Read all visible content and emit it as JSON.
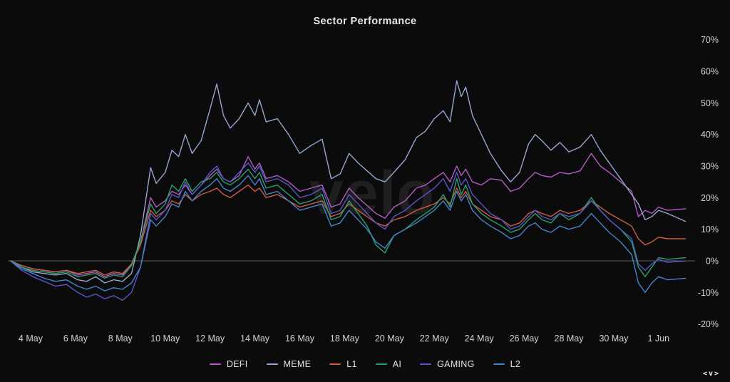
{
  "title": "Sector Performance",
  "watermark": "velo",
  "logo_text": "<v>",
  "colors": {
    "background": "#0b0b0b",
    "title_text": "#e8e8e8",
    "axis_text": "#d2d2d2",
    "zero_line": "#606060",
    "watermark": "#1f1f1f",
    "legend_text": "#e4e4e4"
  },
  "chart_data": {
    "type": "line",
    "title": "Sector Performance",
    "x_unit": "days since 3 May",
    "ylim": [
      -20,
      70
    ],
    "grid": false,
    "zero_line": true,
    "legend_position": "bottom",
    "y_ticks": [
      {
        "label": "70%",
        "value": 70
      },
      {
        "label": "60%",
        "value": 60
      },
      {
        "label": "50%",
        "value": 50
      },
      {
        "label": "40%",
        "value": 40
      },
      {
        "label": "30%",
        "value": 30
      },
      {
        "label": "20%",
        "value": 20
      },
      {
        "label": "10%",
        "value": 10
      },
      {
        "label": "0%",
        "value": 0
      },
      {
        "label": "-10%",
        "value": -10
      },
      {
        "label": "-20%",
        "value": -20
      }
    ],
    "x_ticks": [
      {
        "label": "4 May",
        "day": 1
      },
      {
        "label": "6 May",
        "day": 3
      },
      {
        "label": "8 May",
        "day": 5
      },
      {
        "label": "10 May",
        "day": 7
      },
      {
        "label": "12 May",
        "day": 9
      },
      {
        "label": "14 May",
        "day": 11
      },
      {
        "label": "16 May",
        "day": 13
      },
      {
        "label": "18 May",
        "day": 15
      },
      {
        "label": "20 May",
        "day": 17
      },
      {
        "label": "22 May",
        "day": 19
      },
      {
        "label": "24 May",
        "day": 21
      },
      {
        "label": "26 May",
        "day": 23
      },
      {
        "label": "28 May",
        "day": 25
      },
      {
        "label": "30 May",
        "day": 27
      },
      {
        "label": "1 Jun",
        "day": 29
      }
    ],
    "x": [
      0.1,
      0.6,
      1.1,
      1.6,
      2.1,
      2.6,
      3.1,
      3.5,
      3.9,
      4.3,
      4.7,
      5.1,
      5.5,
      5.9,
      6.35,
      6.6,
      7.0,
      7.3,
      7.6,
      7.9,
      8.2,
      8.6,
      9.0,
      9.3,
      9.6,
      9.9,
      10.3,
      10.7,
      11.0,
      11.2,
      11.5,
      12.0,
      12.5,
      13.0,
      13.5,
      14.0,
      14.4,
      14.8,
      15.2,
      15.6,
      16.0,
      16.4,
      16.8,
      17.2,
      17.7,
      18.2,
      18.6,
      19.0,
      19.4,
      19.7,
      20.0,
      20.2,
      20.4,
      20.7,
      21.1,
      21.5,
      22.0,
      22.4,
      22.8,
      23.2,
      23.5,
      23.8,
      24.2,
      24.6,
      25.0,
      25.5,
      26.0,
      26.4,
      26.8,
      27.3,
      27.8,
      28.1,
      28.4,
      28.7,
      29.0,
      29.4,
      30.2
    ],
    "series": [
      {
        "name": "DEFI",
        "color": "#b35bc4",
        "values": [
          0,
          -1.5,
          -2.5,
          -3,
          -3.5,
          -3,
          -4.5,
          -4,
          -3.5,
          -5,
          -4,
          -4.5,
          -1,
          6,
          20,
          17,
          19,
          22,
          21,
          24,
          21,
          24,
          27,
          29,
          26,
          25,
          27,
          33,
          29,
          31,
          26,
          27,
          25,
          22,
          23,
          24,
          17,
          18,
          23,
          20,
          17.5,
          15,
          13.5,
          17,
          19,
          23,
          24,
          26,
          28,
          25,
          30,
          27,
          29,
          25,
          24,
          26,
          25.5,
          22,
          23,
          26,
          28,
          27,
          26.5,
          28,
          27.5,
          28.5,
          34,
          30,
          28,
          25,
          22,
          14,
          16,
          15,
          17,
          16,
          16.5
        ]
      },
      {
        "name": "MEME",
        "color": "#95a7cf",
        "values": [
          0,
          -2,
          -3.5,
          -4,
          -4.5,
          -4,
          -6,
          -6.5,
          -5,
          -7,
          -6,
          -6.5,
          -4,
          8,
          29.5,
          24.5,
          28,
          35,
          33,
          40,
          34,
          38,
          48,
          56,
          46,
          42,
          45,
          50,
          46,
          51,
          44,
          45,
          40,
          34,
          36.5,
          38.5,
          26,
          27.5,
          34,
          31,
          28.5,
          26,
          25,
          28,
          32,
          39,
          41,
          45,
          47.5,
          44,
          57,
          52,
          55,
          46,
          40,
          34,
          28.5,
          25,
          28,
          37,
          40,
          38,
          35,
          37.5,
          34.5,
          36,
          40,
          35,
          31,
          26,
          21,
          18,
          13,
          14,
          16,
          15,
          12.5
        ]
      },
      {
        "name": "L1",
        "color": "#cf5b43",
        "values": [
          0,
          -1.5,
          -2.5,
          -3,
          -3.5,
          -3,
          -4,
          -3.5,
          -3,
          -4.5,
          -3.5,
          -4,
          -1,
          5,
          16,
          14,
          16,
          19,
          18,
          21,
          19,
          21,
          22,
          23,
          21,
          20,
          22,
          24,
          22,
          23,
          20,
          21,
          19,
          17,
          18,
          19,
          14,
          15,
          18,
          16,
          14,
          12,
          11,
          13,
          14,
          16,
          17,
          18,
          20,
          18,
          23,
          20,
          22,
          18,
          16,
          14,
          13,
          11,
          12,
          15,
          16,
          15,
          14,
          16,
          15,
          16,
          19,
          17,
          15,
          13,
          11,
          7,
          5,
          6,
          7.5,
          7,
          7
        ]
      },
      {
        "name": "AI",
        "color": "#27a26c",
        "values": [
          0,
          -2,
          -3,
          -3.5,
          -4,
          -3.5,
          -5,
          -4.5,
          -4,
          -5.5,
          -4.5,
          -5,
          -1.5,
          6,
          18,
          15,
          18,
          24,
          22,
          26,
          22,
          25,
          26,
          28,
          25,
          24,
          26,
          29,
          26,
          28,
          23,
          24,
          21,
          18,
          19,
          21,
          13,
          14,
          19,
          15,
          11,
          5,
          2.5,
          8,
          10,
          13,
          15,
          17,
          21,
          17,
          26,
          21,
          24,
          18,
          15,
          13,
          11,
          9,
          10,
          13,
          15,
          13,
          12,
          15,
          13,
          15,
          20,
          16,
          13,
          10,
          6,
          -2,
          -5,
          -2,
          1,
          0.5,
          1
        ]
      },
      {
        "name": "GAMING",
        "color": "#5a55c9",
        "values": [
          0,
          -3,
          -5,
          -6.5,
          -8,
          -7.5,
          -10,
          -11.5,
          -10.5,
          -12,
          -11,
          -12.5,
          -10,
          -2,
          15,
          13,
          16,
          21,
          20,
          25,
          21,
          24,
          28,
          30,
          26,
          25,
          28,
          31,
          28,
          30,
          25,
          26,
          24,
          20,
          21,
          23,
          15,
          16,
          21,
          18,
          15,
          12,
          10,
          14,
          16,
          19,
          21,
          23,
          26,
          22,
          28,
          24,
          26,
          21,
          18,
          15,
          13,
          10,
          11,
          14,
          16,
          14,
          13,
          15,
          14,
          15,
          19,
          16,
          13,
          10,
          7,
          -1,
          -3,
          -1,
          0.5,
          -0.5,
          0
        ]
      },
      {
        "name": "L2",
        "color": "#4584cb",
        "values": [
          0,
          -2.5,
          -4,
          -5.5,
          -6.5,
          -6,
          -8,
          -9,
          -8,
          -9.5,
          -8.5,
          -9,
          -7,
          -2,
          13,
          11,
          14,
          18,
          17,
          22,
          19,
          22,
          24,
          26,
          23,
          22,
          24,
          27,
          24,
          26,
          21,
          22,
          19,
          16,
          17,
          18,
          11,
          12,
          16,
          13,
          10,
          6,
          4,
          8,
          10,
          12,
          14,
          16,
          19,
          16,
          22,
          19,
          21,
          16,
          13,
          11,
          9,
          7,
          8,
          11,
          12,
          10,
          9,
          11,
          10,
          11,
          15,
          12,
          9,
          6,
          2,
          -7,
          -10,
          -7,
          -5,
          -6,
          -5.5
        ]
      }
    ]
  }
}
